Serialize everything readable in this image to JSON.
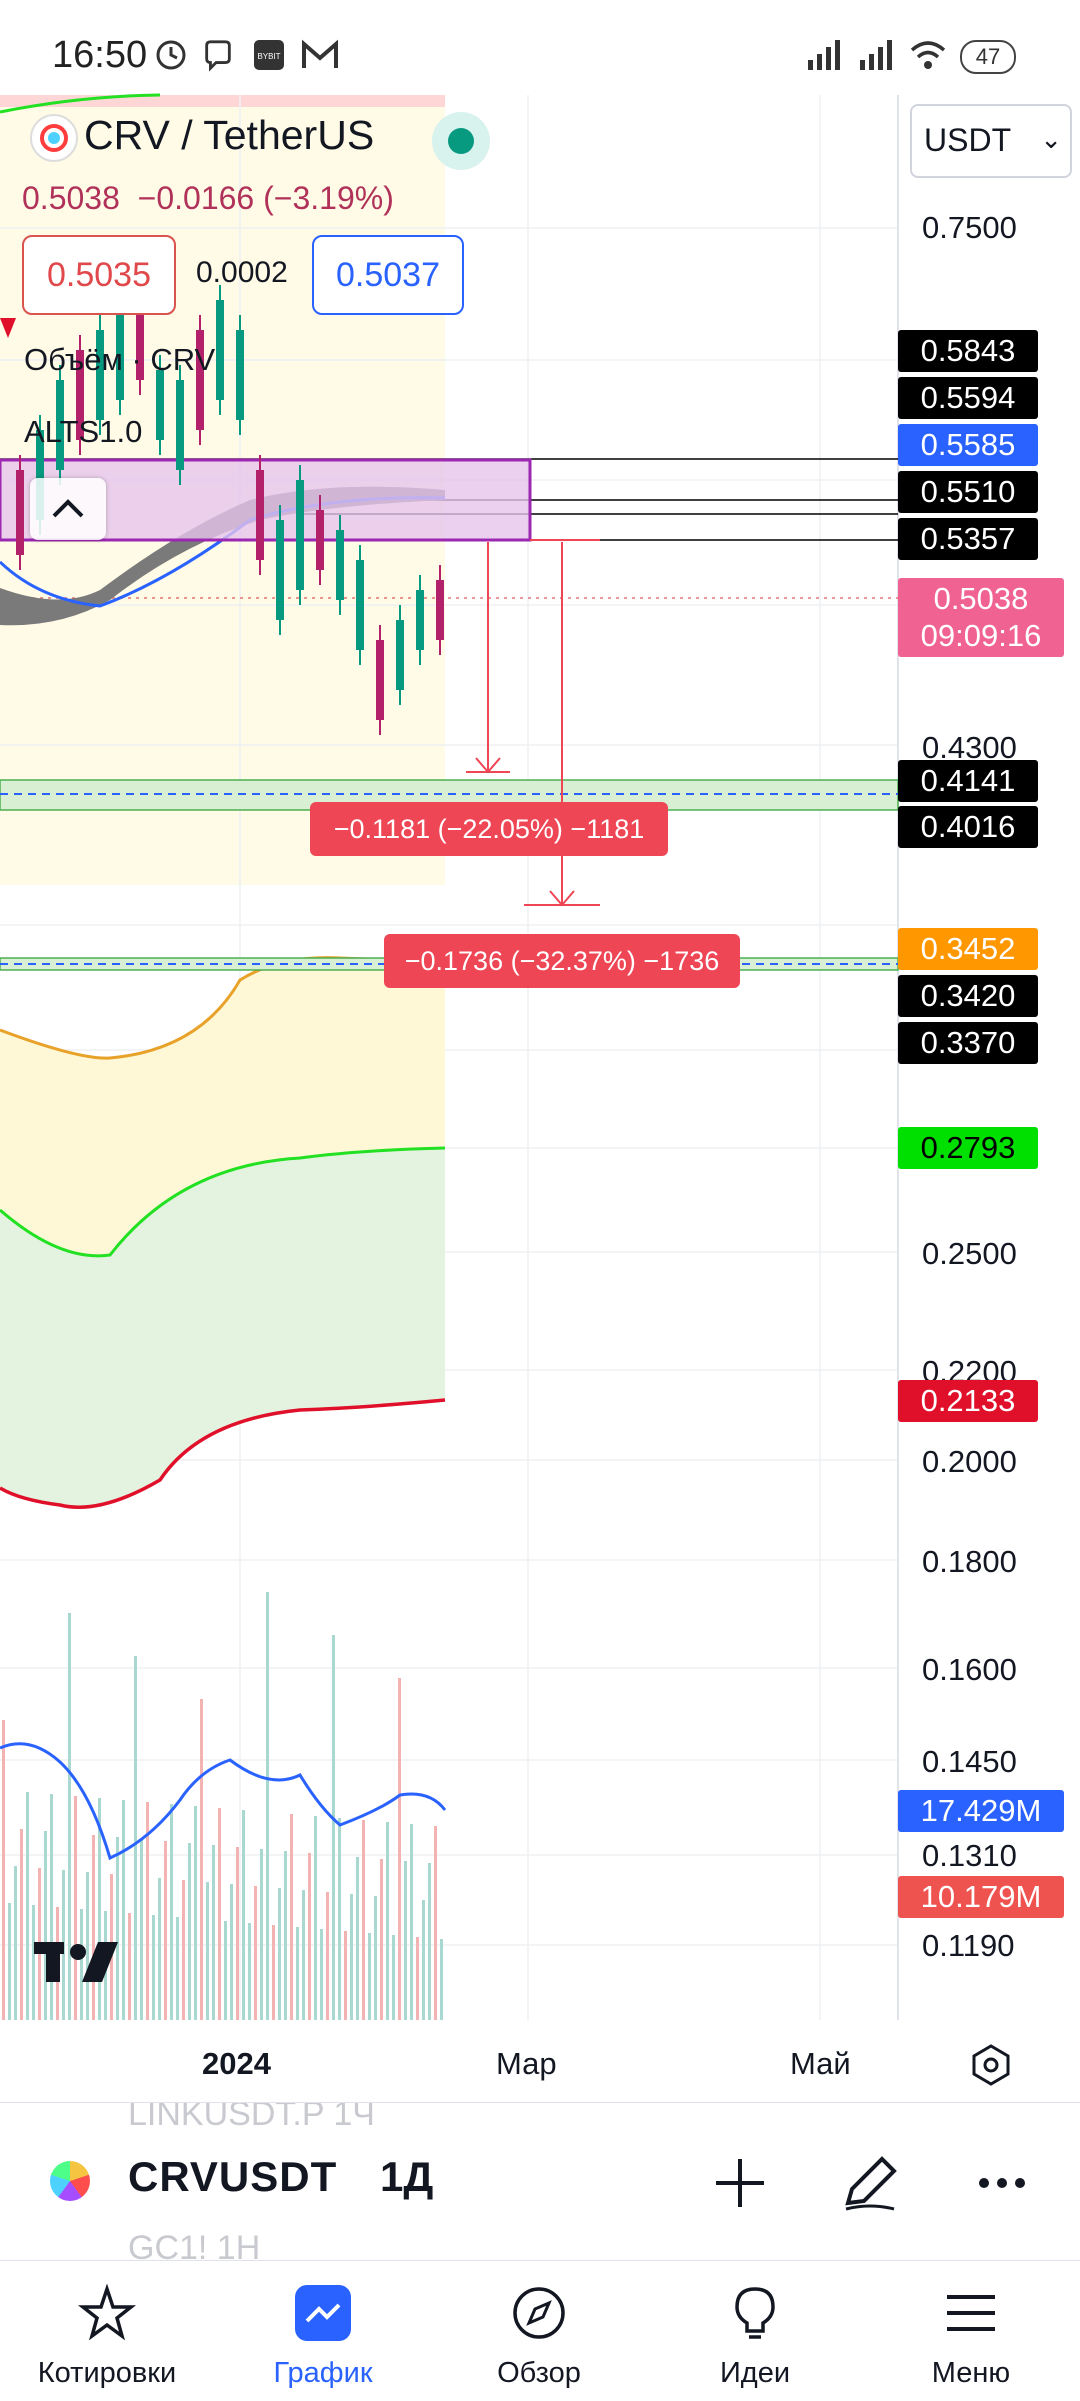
{
  "status_bar": {
    "time": "16:50",
    "battery": "47",
    "notification_icons": [
      "alarm-icon",
      "viber-icon",
      "bybit-icon",
      "gmail-icon"
    ],
    "system_icons": [
      "signal-icon",
      "signal-icon",
      "wifi-icon",
      "battery-icon"
    ]
  },
  "header": {
    "symbol_title": "CRV / TetherUS",
    "last_price": "0.5038",
    "change": "−0.0166 (−3.19%)",
    "bid": "0.5035",
    "spread": "0.0002",
    "ask": "0.5037",
    "currency": "USDT",
    "indicators": [
      "Объём · CRV",
      "ALTS1.0"
    ]
  },
  "price_axis": {
    "ticks": [
      "0.7500",
      "0.4300",
      "0.2500",
      "0.2200",
      "0.2000",
      "0.1800",
      "0.1600",
      "0.1450",
      "0.1310",
      "0.1190"
    ],
    "badges": [
      {
        "value": "0.5843",
        "color": "#000000"
      },
      {
        "value": "0.5594",
        "color": "#000000"
      },
      {
        "value": "0.5585",
        "color": "#2962ff"
      },
      {
        "value": "0.5510",
        "color": "#000000"
      },
      {
        "value": "0.5357",
        "color": "#000000"
      },
      {
        "value": "0.5038",
        "color": "#f06292"
      },
      {
        "value": "09:09:16",
        "color": "#f06292"
      },
      {
        "value": "0.4141",
        "color": "#000000"
      },
      {
        "value": "0.4016",
        "color": "#000000"
      },
      {
        "value": "0.3452",
        "color": "#ff9800"
      },
      {
        "value": "0.3420",
        "color": "#000000"
      },
      {
        "value": "0.3370",
        "color": "#000000"
      },
      {
        "value": "0.2793",
        "color": "#00e000"
      },
      {
        "value": "0.2133",
        "color": "#e0102a"
      },
      {
        "value": "17.429M",
        "color": "#2962ff"
      },
      {
        "value": "10.179M",
        "color": "#ef5350"
      }
    ]
  },
  "measurements": [
    {
      "label": "−0.1181 (−22.05%) −1181"
    },
    {
      "label": "−0.1736 (−32.37%) −1736"
    }
  ],
  "time_axis": [
    "2024",
    "Мар",
    "Май"
  ],
  "symbol_bar": {
    "ghost_above": "LINKUSDT.P 1Ч",
    "symbol": "CRVUSDT",
    "timeframe": "1Д",
    "ghost_below": "GC1! 1Н"
  },
  "nav": [
    {
      "label": "Котировки",
      "icon": "star-icon"
    },
    {
      "label": "График",
      "icon": "chart-icon"
    },
    {
      "label": "Обзор",
      "icon": "compass-icon"
    },
    {
      "label": "Идеи",
      "icon": "lightbulb-icon"
    },
    {
      "label": "Меню",
      "icon": "hamburger-icon"
    }
  ],
  "colors": {
    "accent": "#2962ff",
    "up_candle": "#089981",
    "down_candle": "#b2216a",
    "measure": "#ef4655",
    "zone_purple": "#e1bee7"
  }
}
